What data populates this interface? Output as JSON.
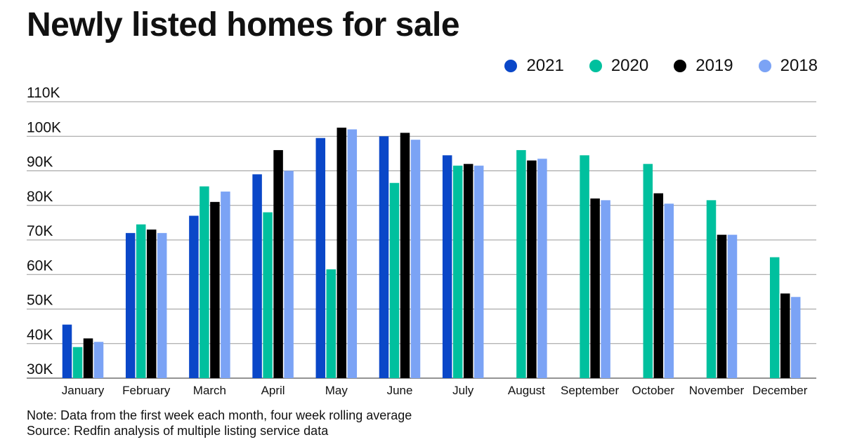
{
  "title": "Newly listed homes for sale",
  "legend": [
    {
      "name": "2021",
      "color": "#0a47c8"
    },
    {
      "name": "2020",
      "color": "#00c09e"
    },
    {
      "name": "2019",
      "color": "#000000"
    },
    {
      "name": "2018",
      "color": "#7ba3f5"
    }
  ],
  "chart_data": {
    "type": "bar",
    "title": "Newly listed homes for sale",
    "xlabel": "",
    "ylabel": "",
    "ylim": [
      30000,
      110000
    ],
    "y_ticks": [
      30000,
      40000,
      50000,
      60000,
      70000,
      80000,
      90000,
      100000,
      110000
    ],
    "y_tick_labels": [
      "30K",
      "40K",
      "50K",
      "60K",
      "70K",
      "80K",
      "90K",
      "100K",
      "110K"
    ],
    "grid": true,
    "legend_position": "top-right",
    "categories": [
      "January",
      "February",
      "March",
      "April",
      "May",
      "June",
      "July",
      "August",
      "September",
      "October",
      "November",
      "December"
    ],
    "series": [
      {
        "name": "2021",
        "color": "#0a47c8",
        "values": [
          45500,
          72000,
          77000,
          89000,
          99500,
          100000,
          94500,
          null,
          null,
          null,
          null,
          null
        ]
      },
      {
        "name": "2020",
        "color": "#00c09e",
        "values": [
          39000,
          74500,
          85500,
          78000,
          61500,
          86500,
          91500,
          96000,
          94500,
          92000,
          81500,
          65000
        ]
      },
      {
        "name": "2019",
        "color": "#000000",
        "values": [
          41500,
          73000,
          81000,
          96000,
          102500,
          101000,
          92000,
          93000,
          82000,
          83500,
          71500,
          54500
        ]
      },
      {
        "name": "2018",
        "color": "#7ba3f5",
        "values": [
          40500,
          72000,
          84000,
          90000,
          102000,
          99000,
          91500,
          93500,
          81500,
          80500,
          71500,
          53500
        ]
      }
    ]
  },
  "notes": {
    "note": "Note: Data from the first week each month, four week rolling average",
    "source": "Source: Redfin analysis of multiple listing service data"
  }
}
